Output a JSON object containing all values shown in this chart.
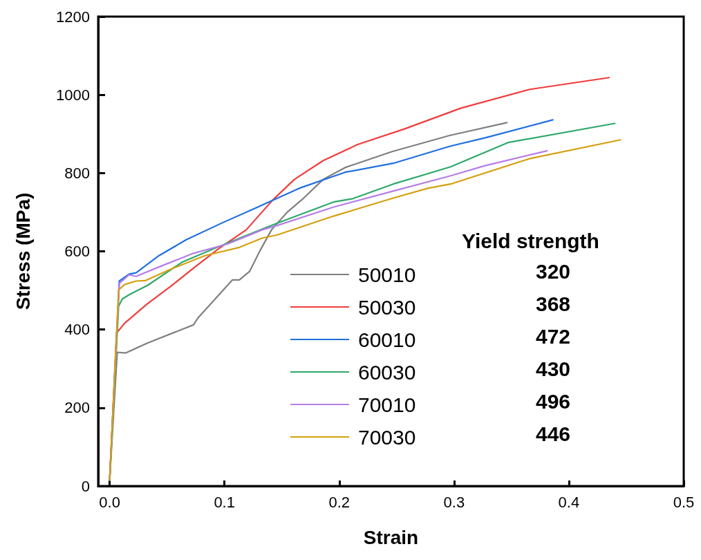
{
  "chart_data": {
    "type": "line",
    "xlabel": "Strain",
    "ylabel": "Stress (MPa)",
    "xlim": [
      -0.01,
      0.5
    ],
    "xticks": [
      {
        "value": 0,
        "label": "0.0"
      },
      0.1,
      0.2,
      0.3,
      0.4,
      0.5
    ],
    "ylim": [
      0,
      1200
    ],
    "yticks": [
      0,
      200,
      400,
      600,
      800,
      1000,
      1200
    ],
    "grid": false,
    "legend": "bottom",
    "marker": "none",
    "line_style": "solid",
    "legend_title": "Yield strength",
    "annotations": [
      "320",
      "368",
      "472",
      "430",
      "496",
      "446"
    ],
    "series": [
      {
        "name": "50010",
        "color": "#7f7f7f",
        "x": [
          0,
          0.0066,
          0.014,
          0.0325,
          0.073,
          0.077,
          0.107,
          0.113,
          0.122,
          0.131,
          0.141,
          0.155,
          0.169,
          0.186,
          0.205,
          0.246,
          0.296,
          0.346
        ],
        "values": [
          15,
          342,
          340,
          365,
          412,
          430,
          527,
          527,
          549,
          602,
          655,
          701,
          736,
          784,
          814,
          855,
          896,
          929
        ]
      },
      {
        "name": "50030",
        "color": "#f03c3c",
        "x": [
          0,
          0.006,
          0.013,
          0.0325,
          0.053,
          0.073,
          0.095,
          0.119,
          0.142,
          0.161,
          0.186,
          0.216,
          0.257,
          0.306,
          0.366,
          0.435
        ],
        "values": [
          15,
          391,
          416,
          465,
          510,
          557,
          607,
          655,
          731,
          784,
          832,
          873,
          913,
          966,
          1014,
          1044
        ]
      },
      {
        "name": "60010",
        "color": "#1f6fe0",
        "x": [
          0,
          0.0084,
          0.017,
          0.023,
          0.043,
          0.067,
          0.099,
          0.125,
          0.165,
          0.205,
          0.247,
          0.297,
          0.327,
          0.386
        ],
        "values": [
          15,
          524,
          542,
          545,
          589,
          630,
          674,
          708,
          761,
          802,
          825,
          869,
          890,
          936
        ]
      },
      {
        "name": "60030",
        "color": "#2ea86a",
        "x": [
          0,
          0.0078,
          0.011,
          0.017,
          0.033,
          0.063,
          0.095,
          0.133,
          0.146,
          0.195,
          0.211,
          0.247,
          0.297,
          0.347,
          0.44
        ],
        "values": [
          15,
          460,
          478,
          489,
          513,
          572,
          612,
          657,
          672,
          726,
          734,
          772,
          816,
          878,
          927
        ]
      },
      {
        "name": "70010",
        "color": "#b57ee8",
        "x": [
          0,
          0.0084,
          0.017,
          0.023,
          0.043,
          0.073,
          0.103,
          0.133,
          0.146,
          0.195,
          0.247,
          0.297,
          0.327,
          0.381
        ],
        "values": [
          15,
          518,
          540,
          536,
          560,
          595,
          619,
          655,
          666,
          713,
          754,
          793,
          819,
          857
        ]
      },
      {
        "name": "70030",
        "color": "#d4a010",
        "x": [
          0,
          0.0078,
          0.013,
          0.023,
          0.031,
          0.053,
          0.083,
          0.113,
          0.133,
          0.146,
          0.195,
          0.247,
          0.277,
          0.297,
          0.366,
          0.445
        ],
        "values": [
          15,
          501,
          515,
          524,
          525,
          554,
          589,
          610,
          634,
          642,
          690,
          736,
          761,
          772,
          837,
          885
        ]
      }
    ]
  }
}
